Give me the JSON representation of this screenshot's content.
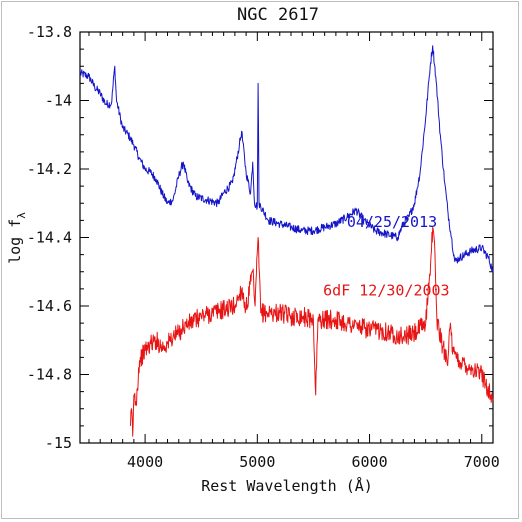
{
  "chart_data": {
    "type": "line",
    "title": "NGC 2617",
    "xlabel": "Rest Wavelength (Å)",
    "ylabel_main": "log f",
    "ylabel_sub": "λ",
    "xlim": [
      3420,
      7100
    ],
    "ylim": [
      -15.0,
      -13.8
    ],
    "x_ticks": [
      4000,
      5000,
      6000,
      7000
    ],
    "x_tick_labels": [
      "4000",
      "5000",
      "6000",
      "7000"
    ],
    "y_ticks": [
      -13.8,
      -14.0,
      -14.2,
      -14.4,
      -14.6,
      -14.8,
      -15.0
    ],
    "y_tick_labels": [
      "-13.8",
      "-14",
      "-14.2",
      "-14.4",
      "-14.6",
      "-14.8",
      "-15"
    ],
    "grid": false,
    "series": [
      {
        "name": "04/25/2013",
        "color": "#1414c8",
        "points": [
          [
            3420,
            -13.92
          ],
          [
            3500,
            -13.93
          ],
          [
            3550,
            -13.96
          ],
          [
            3600,
            -13.98
          ],
          [
            3650,
            -14.01
          ],
          [
            3700,
            -14.01
          ],
          [
            3730,
            -13.9
          ],
          [
            3745,
            -14.0
          ],
          [
            3800,
            -14.08
          ],
          [
            3850,
            -14.1
          ],
          [
            3900,
            -14.13
          ],
          [
            3950,
            -14.17
          ],
          [
            4000,
            -14.2
          ],
          [
            4050,
            -14.21
          ],
          [
            4100,
            -14.23
          ],
          [
            4150,
            -14.27
          ],
          [
            4200,
            -14.3
          ],
          [
            4250,
            -14.29
          ],
          [
            4300,
            -14.22
          ],
          [
            4340,
            -14.18
          ],
          [
            4380,
            -14.24
          ],
          [
            4450,
            -14.28
          ],
          [
            4550,
            -14.29
          ],
          [
            4650,
            -14.3
          ],
          [
            4700,
            -14.27
          ],
          [
            4780,
            -14.24
          ],
          [
            4840,
            -14.13
          ],
          [
            4860,
            -14.09
          ],
          [
            4900,
            -14.21
          ],
          [
            4940,
            -14.27
          ],
          [
            4959,
            -14.18
          ],
          [
            4975,
            -14.3
          ],
          [
            5000,
            -14.31
          ],
          [
            5007,
            -13.95
          ],
          [
            5015,
            -14.3
          ],
          [
            5100,
            -14.35
          ],
          [
            5200,
            -14.36
          ],
          [
            5300,
            -14.37
          ],
          [
            5400,
            -14.38
          ],
          [
            5500,
            -14.38
          ],
          [
            5600,
            -14.37
          ],
          [
            5700,
            -14.36
          ],
          [
            5800,
            -14.34
          ],
          [
            5880,
            -14.32
          ],
          [
            5950,
            -14.35
          ],
          [
            6050,
            -14.38
          ],
          [
            6150,
            -14.39
          ],
          [
            6250,
            -14.4
          ],
          [
            6300,
            -14.36
          ],
          [
            6350,
            -14.34
          ],
          [
            6400,
            -14.3
          ],
          [
            6450,
            -14.21
          ],
          [
            6500,
            -14.05
          ],
          [
            6540,
            -13.9
          ],
          [
            6563,
            -13.84
          ],
          [
            6590,
            -13.93
          ],
          [
            6630,
            -14.1
          ],
          [
            6670,
            -14.24
          ],
          [
            6700,
            -14.33
          ],
          [
            6730,
            -14.4
          ],
          [
            6760,
            -14.47
          ],
          [
            6800,
            -14.46
          ],
          [
            6900,
            -14.44
          ],
          [
            7000,
            -14.43
          ],
          [
            7060,
            -14.46
          ],
          [
            7100,
            -14.5
          ]
        ]
      },
      {
        "name": "6dF 12/30/2003",
        "color": "#e81414",
        "points": [
          [
            3870,
            -14.95
          ],
          [
            3880,
            -14.9
          ],
          [
            3890,
            -14.98
          ],
          [
            3900,
            -14.86
          ],
          [
            3920,
            -14.88
          ],
          [
            3950,
            -14.76
          ],
          [
            4000,
            -14.73
          ],
          [
            4050,
            -14.71
          ],
          [
            4100,
            -14.7
          ],
          [
            4150,
            -14.72
          ],
          [
            4200,
            -14.71
          ],
          [
            4250,
            -14.69
          ],
          [
            4300,
            -14.68
          ],
          [
            4340,
            -14.66
          ],
          [
            4400,
            -14.65
          ],
          [
            4500,
            -14.63
          ],
          [
            4600,
            -14.62
          ],
          [
            4700,
            -14.61
          ],
          [
            4800,
            -14.6
          ],
          [
            4861,
            -14.55
          ],
          [
            4900,
            -14.61
          ],
          [
            4959,
            -14.5
          ],
          [
            4980,
            -14.6
          ],
          [
            5007,
            -14.4
          ],
          [
            5030,
            -14.62
          ],
          [
            5100,
            -14.62
          ],
          [
            5200,
            -14.62
          ],
          [
            5300,
            -14.63
          ],
          [
            5400,
            -14.63
          ],
          [
            5500,
            -14.64
          ],
          [
            5520,
            -14.86
          ],
          [
            5540,
            -14.64
          ],
          [
            5600,
            -14.64
          ],
          [
            5700,
            -14.64
          ],
          [
            5800,
            -14.65
          ],
          [
            5900,
            -14.66
          ],
          [
            6000,
            -14.67
          ],
          [
            6100,
            -14.67
          ],
          [
            6200,
            -14.68
          ],
          [
            6300,
            -14.69
          ],
          [
            6400,
            -14.68
          ],
          [
            6500,
            -14.65
          ],
          [
            6548,
            -14.45
          ],
          [
            6563,
            -14.37
          ],
          [
            6583,
            -14.45
          ],
          [
            6600,
            -14.64
          ],
          [
            6650,
            -14.72
          ],
          [
            6700,
            -14.75
          ],
          [
            6720,
            -14.65
          ],
          [
            6740,
            -14.74
          ],
          [
            6800,
            -14.76
          ],
          [
            6900,
            -14.78
          ],
          [
            7000,
            -14.8
          ],
          [
            7080,
            -14.86
          ],
          [
            7100,
            -14.87
          ]
        ]
      }
    ],
    "annotations": [
      {
        "text": "04/25/2013",
        "x": 6200,
        "y": -14.37,
        "color": "#1414c8"
      },
      {
        "text": "6dF 12/30/2003",
        "x": 6150,
        "y": -14.57,
        "color": "#e81414"
      }
    ]
  }
}
